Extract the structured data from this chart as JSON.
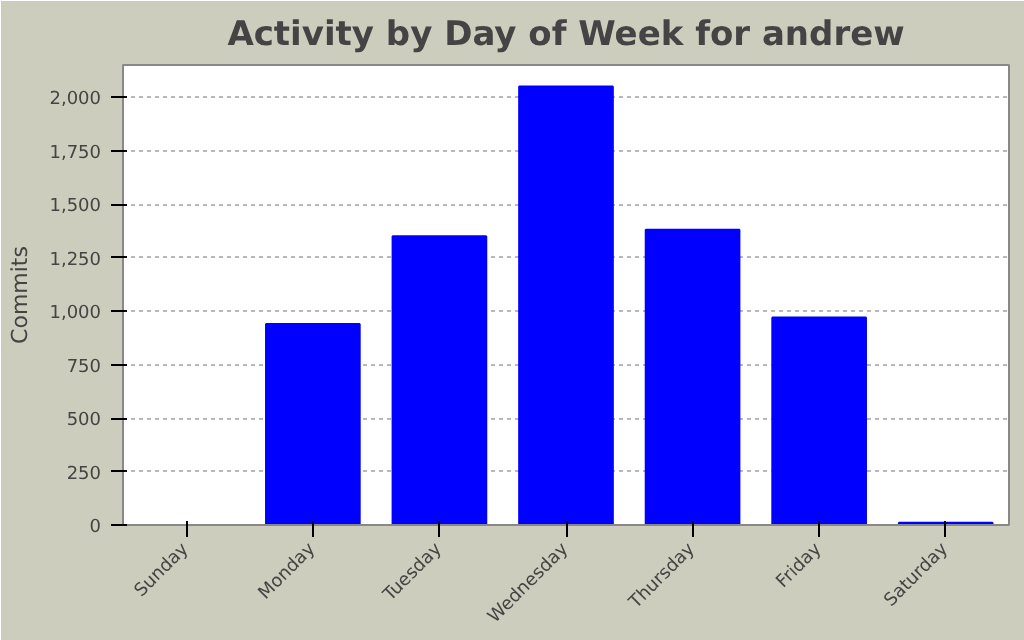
{
  "chart_data": {
    "type": "bar",
    "title": "Activity by Day of Week for andrew",
    "ylabel": "Commits",
    "categories": [
      "Sunday",
      "Monday",
      "Tuesday",
      "Wednesday",
      "Thursday",
      "Friday",
      "Saturday"
    ],
    "values": [
      0,
      940,
      1350,
      2050,
      1380,
      970,
      10
    ],
    "color": "#0000ff",
    "ylim": [
      0,
      2150
    ],
    "yticks": [
      0,
      {
        "value": 250,
        "label": "250"
      },
      {
        "value": 500,
        "label": "500"
      },
      {
        "value": 750,
        "label": "750"
      },
      {
        "value": 1000,
        "label": "1,000"
      },
      {
        "value": 1250,
        "label": "1,250"
      },
      {
        "value": 1500,
        "label": "1,500"
      },
      {
        "value": 1750,
        "label": "1,750"
      },
      {
        "value": 2000,
        "label": "2,000"
      }
    ],
    "grid": "y"
  }
}
